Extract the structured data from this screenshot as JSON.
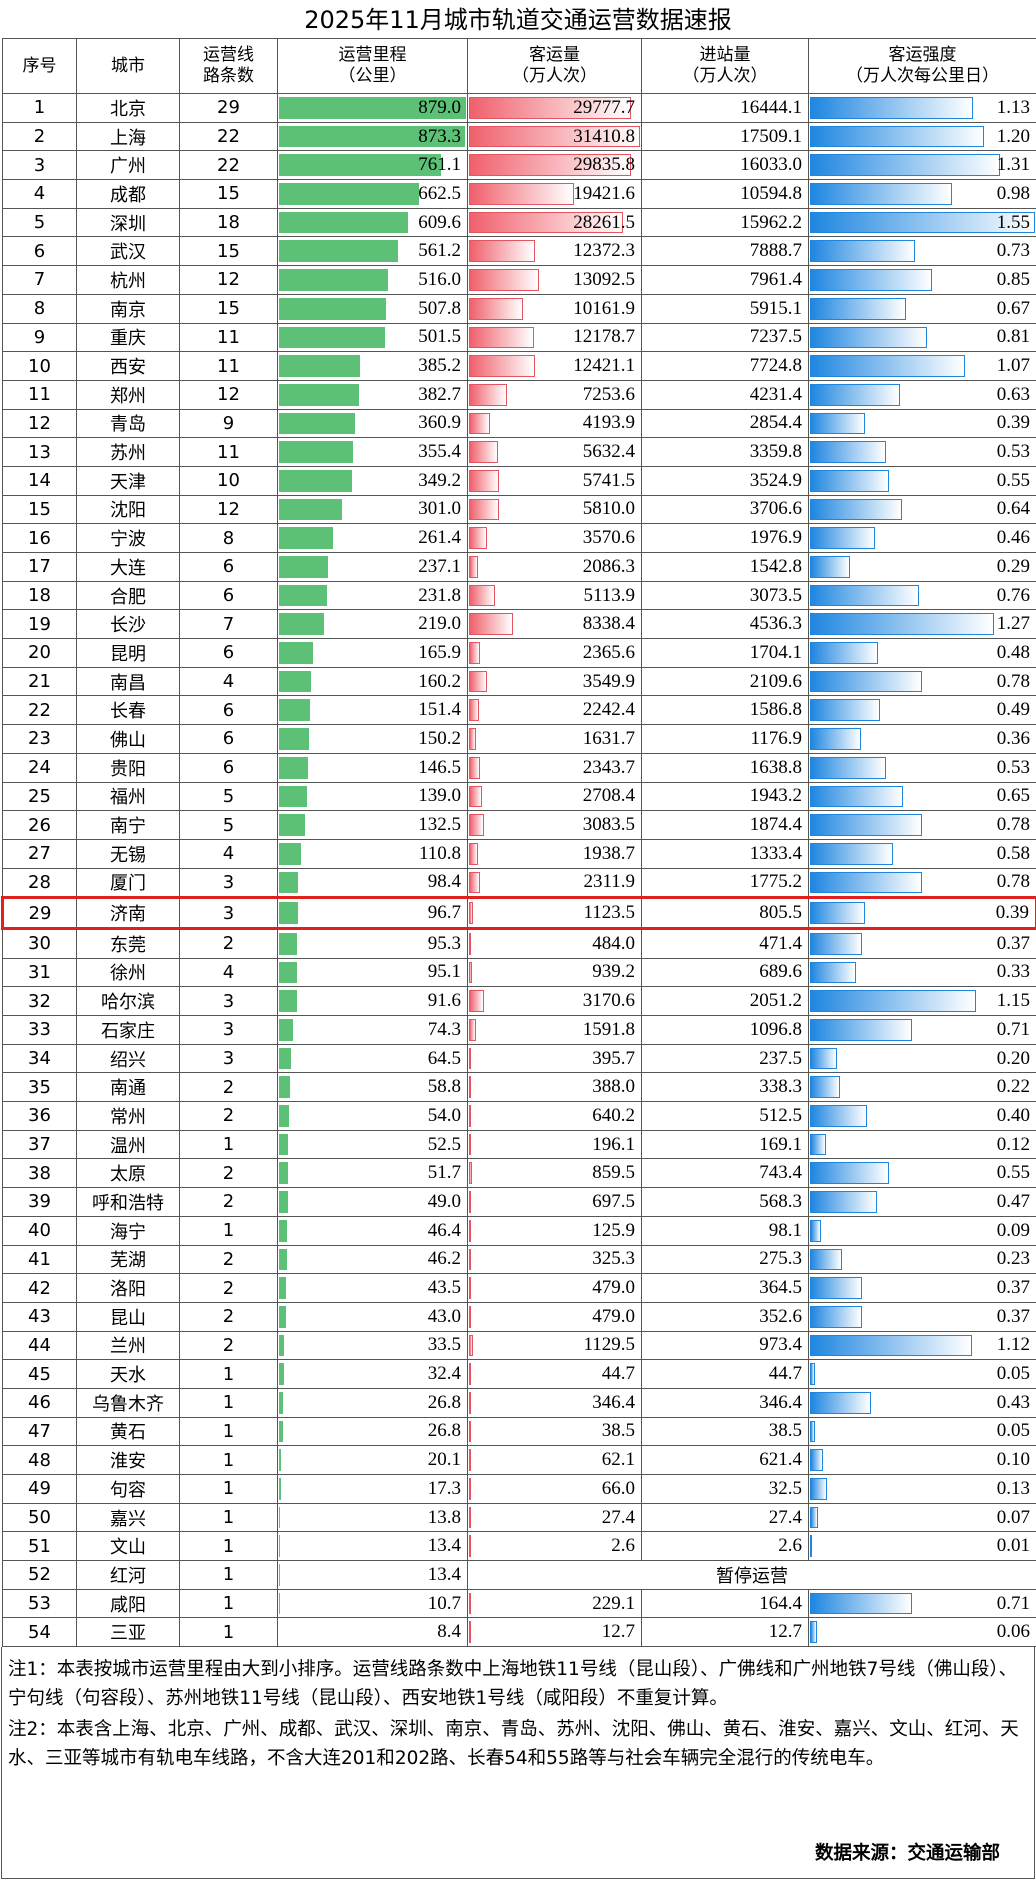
{
  "title": "2025年11月城市轨道交通运营数据速报",
  "table": {
    "header": [
      [
        "序号"
      ],
      [
        "城市"
      ],
      [
        "运营线",
        "路条数"
      ],
      [
        "运营里程",
        "（公里）"
      ],
      [
        "客运量",
        "（万人次）"
      ],
      [
        "进站量",
        "（万人次）"
      ],
      [
        "客运强度",
        "（万人次每公里日）"
      ]
    ],
    "rows": [
      [
        "1",
        "北京",
        "29",
        "879.0",
        "29777.7",
        "16444.1",
        "1.13"
      ],
      [
        "2",
        "上海",
        "22",
        "873.3",
        "31410.8",
        "17509.1",
        "1.20"
      ],
      [
        "3",
        "广州",
        "22",
        "761.1",
        "29835.8",
        "16033.0",
        "1.31"
      ],
      [
        "4",
        "成都",
        "15",
        "662.5",
        "19421.6",
        "10594.8",
        "0.98"
      ],
      [
        "5",
        "深圳",
        "18",
        "609.6",
        "28261.5",
        "15962.2",
        "1.55"
      ],
      [
        "6",
        "武汉",
        "15",
        "561.2",
        "12372.3",
        "7888.7",
        "0.73"
      ],
      [
        "7",
        "杭州",
        "12",
        "516.0",
        "13092.5",
        "7961.4",
        "0.85"
      ],
      [
        "8",
        "南京",
        "15",
        "507.8",
        "10161.9",
        "5915.1",
        "0.67"
      ],
      [
        "9",
        "重庆",
        "11",
        "501.5",
        "12178.7",
        "7237.5",
        "0.81"
      ],
      [
        "10",
        "西安",
        "11",
        "385.2",
        "12421.1",
        "7724.8",
        "1.07"
      ],
      [
        "11",
        "郑州",
        "12",
        "382.7",
        "7253.6",
        "4231.4",
        "0.63"
      ],
      [
        "12",
        "青岛",
        "9",
        "360.9",
        "4193.9",
        "2854.4",
        "0.39"
      ],
      [
        "13",
        "苏州",
        "11",
        "355.4",
        "5632.4",
        "3359.8",
        "0.53"
      ],
      [
        "14",
        "天津",
        "10",
        "349.2",
        "5741.5",
        "3524.9",
        "0.55"
      ],
      [
        "15",
        "沈阳",
        "12",
        "301.0",
        "5810.0",
        "3706.6",
        "0.64"
      ],
      [
        "16",
        "宁波",
        "8",
        "261.4",
        "3570.6",
        "1976.9",
        "0.46"
      ],
      [
        "17",
        "大连",
        "6",
        "237.1",
        "2086.3",
        "1542.8",
        "0.29"
      ],
      [
        "18",
        "合肥",
        "6",
        "231.8",
        "5113.9",
        "3073.5",
        "0.76"
      ],
      [
        "19",
        "长沙",
        "7",
        "219.0",
        "8338.4",
        "4536.3",
        "1.27"
      ],
      [
        "20",
        "昆明",
        "6",
        "165.9",
        "2365.6",
        "1704.1",
        "0.48"
      ],
      [
        "21",
        "南昌",
        "4",
        "160.2",
        "3549.9",
        "2109.6",
        "0.78"
      ],
      [
        "22",
        "长春",
        "6",
        "151.4",
        "2242.4",
        "1586.8",
        "0.49"
      ],
      [
        "23",
        "佛山",
        "6",
        "150.2",
        "1631.7",
        "1176.9",
        "0.36"
      ],
      [
        "24",
        "贵阳",
        "6",
        "146.5",
        "2343.7",
        "1638.8",
        "0.53"
      ],
      [
        "25",
        "福州",
        "5",
        "139.0",
        "2708.4",
        "1943.2",
        "0.65"
      ],
      [
        "26",
        "南宁",
        "5",
        "132.5",
        "3083.5",
        "1874.4",
        "0.78"
      ],
      [
        "27",
        "无锡",
        "4",
        "110.8",
        "1938.7",
        "1333.4",
        "0.58"
      ],
      [
        "28",
        "厦门",
        "3",
        "98.4",
        "2311.9",
        "1775.2",
        "0.78"
      ],
      [
        "29",
        "济南",
        "3",
        "96.7",
        "1123.5",
        "805.5",
        "0.39"
      ],
      [
        "30",
        "东莞",
        "2",
        "95.3",
        "484.0",
        "471.4",
        "0.37"
      ],
      [
        "31",
        "徐州",
        "4",
        "95.1",
        "939.2",
        "689.6",
        "0.33"
      ],
      [
        "32",
        "哈尔滨",
        "3",
        "91.6",
        "3170.6",
        "2051.2",
        "1.15"
      ],
      [
        "33",
        "石家庄",
        "3",
        "74.3",
        "1591.8",
        "1096.8",
        "0.71"
      ],
      [
        "34",
        "绍兴",
        "3",
        "64.5",
        "395.7",
        "237.5",
        "0.20"
      ],
      [
        "35",
        "南通",
        "2",
        "58.8",
        "388.0",
        "338.3",
        "0.22"
      ],
      [
        "36",
        "常州",
        "2",
        "54.0",
        "640.2",
        "512.5",
        "0.40"
      ],
      [
        "37",
        "温州",
        "1",
        "52.5",
        "196.1",
        "169.1",
        "0.12"
      ],
      [
        "38",
        "太原",
        "2",
        "51.7",
        "859.5",
        "743.4",
        "0.55"
      ],
      [
        "39",
        "呼和浩特",
        "2",
        "49.0",
        "697.5",
        "568.3",
        "0.47"
      ],
      [
        "40",
        "海宁",
        "1",
        "46.4",
        "125.9",
        "98.1",
        "0.09"
      ],
      [
        "41",
        "芜湖",
        "2",
        "46.2",
        "325.3",
        "275.3",
        "0.23"
      ],
      [
        "42",
        "洛阳",
        "2",
        "43.5",
        "479.0",
        "364.5",
        "0.37"
      ],
      [
        "43",
        "昆山",
        "2",
        "43.0",
        "479.0",
        "352.6",
        "0.37"
      ],
      [
        "44",
        "兰州",
        "2",
        "33.5",
        "1129.5",
        "973.4",
        "1.12"
      ],
      [
        "45",
        "天水",
        "1",
        "32.4",
        "44.7",
        "44.7",
        "0.05"
      ],
      [
        "46",
        "乌鲁木齐",
        "1",
        "26.8",
        "346.4",
        "346.4",
        "0.43"
      ],
      [
        "47",
        "黄石",
        "1",
        "26.8",
        "38.5",
        "38.5",
        "0.05"
      ],
      [
        "48",
        "淮安",
        "1",
        "20.1",
        "62.1",
        "621.4",
        "0.10"
      ],
      [
        "49",
        "句容",
        "1",
        "17.3",
        "66.0",
        "32.5",
        "0.13"
      ],
      [
        "50",
        "嘉兴",
        "1",
        "13.8",
        "27.4",
        "27.4",
        "0.07"
      ],
      [
        "51",
        "文山",
        "1",
        "13.4",
        "2.6",
        "2.6",
        "0.01"
      ],
      [
        "52",
        "红河",
        "1",
        "13.4",
        "暂停运营"
      ],
      [
        "53",
        "咸阳",
        "1",
        "10.7",
        "229.1",
        "164.4",
        "0.71"
      ],
      [
        "54",
        "三亚",
        "1",
        "8.4",
        "12.7",
        "12.7",
        "0.06"
      ]
    ]
  },
  "notes": [
    "注1：本表按城市运营里程由大到小排序。运营线路条数中上海地铁11号线（昆山段）、广佛线和广州地铁7号线（佛山段）、宁句线（句容段）、苏州地铁11号线（昆山段）、西安地铁1号线（咸阳段）不重复计算。",
    "注2：本表含上海、北京、广州、成都、武汉、深圳、南京、青岛、苏州、沈阳、佛山、黄石、淮安、嘉兴、文山、红河、天水、三亚等城市有轨电车线路，不含大连201和202路、长春54和55路等与社会车辆完全混行的传统电车。"
  ],
  "source": "数据来源：交通运输部"
}
